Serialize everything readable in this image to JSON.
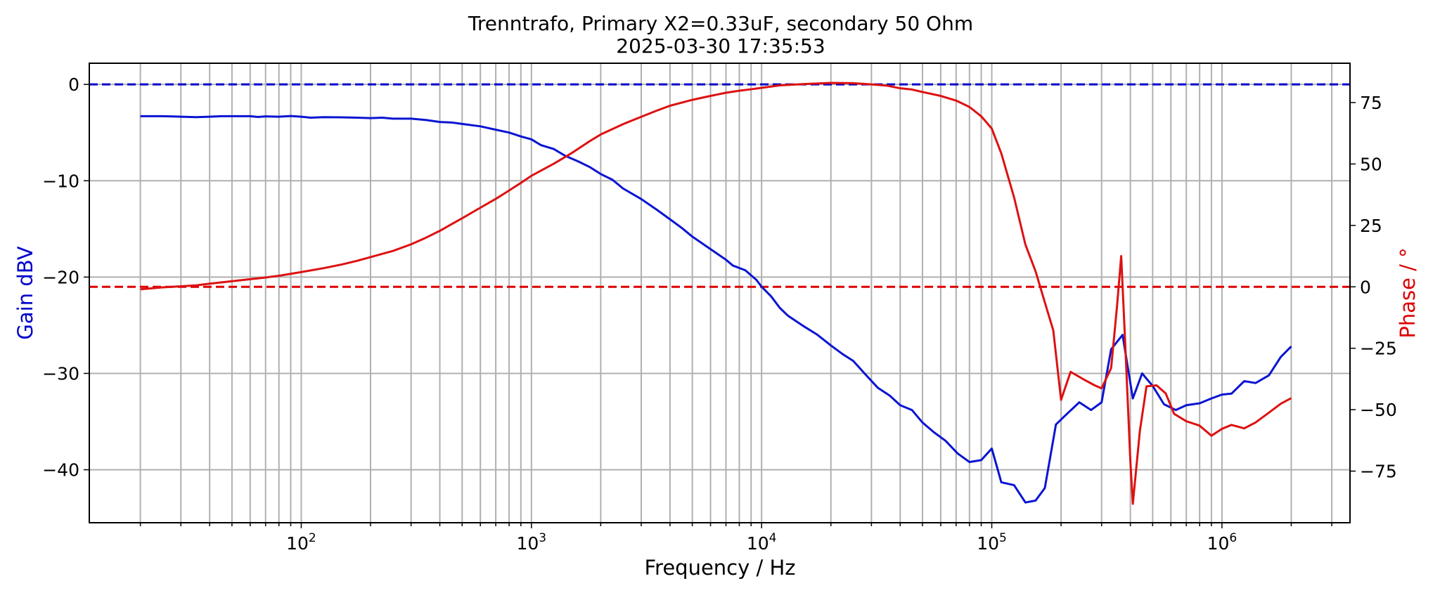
{
  "chart_data": {
    "type": "line",
    "title": "Trenntrafo, Primary X2=0.33uF, secondary 50 Ohm",
    "subtitle": "2025-03-30 17:35:53",
    "xlabel": "Frequency / Hz",
    "ylabel_left": "Gain dBV",
    "ylabel_right": "Phase / °",
    "xscale": "log",
    "xlim": [
      12,
      3600000
    ],
    "ylim_left": [
      -45.5,
      2.2
    ],
    "ylim_right": [
      -96,
      91
    ],
    "grid": true,
    "x_ticks": [
      {
        "value": 100,
        "base": "10",
        "exp": "2"
      },
      {
        "value": 1000,
        "base": "10",
        "exp": "3"
      },
      {
        "value": 10000,
        "base": "10",
        "exp": "4"
      },
      {
        "value": 100000,
        "base": "10",
        "exp": "5"
      },
      {
        "value": 1000000,
        "base": "10",
        "exp": "6"
      }
    ],
    "y_left_ticks": [
      {
        "value": 0,
        "label": "0"
      },
      {
        "value": -10,
        "label": "−10"
      },
      {
        "value": -20,
        "label": "−20"
      },
      {
        "value": -30,
        "label": "−30"
      },
      {
        "value": -40,
        "label": "−40"
      }
    ],
    "y_right_ticks": [
      {
        "value": 75,
        "label": "75"
      },
      {
        "value": 50,
        "label": "50"
      },
      {
        "value": 25,
        "label": "25"
      },
      {
        "value": 0,
        "label": "0"
      },
      {
        "value": -25,
        "label": "−25"
      },
      {
        "value": -50,
        "label": "−50"
      },
      {
        "value": -75,
        "label": "−75"
      }
    ],
    "reference_lines": [
      {
        "axis": "left",
        "value": 0,
        "color": "#0000cc",
        "style": "dashed"
      },
      {
        "axis": "right",
        "value": 0,
        "color": "#dd0000",
        "style": "dashed"
      }
    ],
    "series": [
      {
        "axis": "left",
        "color": "#0a14d2",
        "points": [
          [
            20,
            -3.3
          ],
          [
            25,
            -3.3
          ],
          [
            30,
            -3.35
          ],
          [
            35,
            -3.4
          ],
          [
            40,
            -3.35
          ],
          [
            45,
            -3.3
          ],
          [
            50,
            -3.3
          ],
          [
            60,
            -3.3
          ],
          [
            65,
            -3.38
          ],
          [
            70,
            -3.32
          ],
          [
            80,
            -3.35
          ],
          [
            90,
            -3.28
          ],
          [
            100,
            -3.35
          ],
          [
            110,
            -3.45
          ],
          [
            125,
            -3.4
          ],
          [
            150,
            -3.42
          ],
          [
            175,
            -3.45
          ],
          [
            200,
            -3.5
          ],
          [
            225,
            -3.45
          ],
          [
            250,
            -3.55
          ],
          [
            300,
            -3.55
          ],
          [
            350,
            -3.7
          ],
          [
            400,
            -3.9
          ],
          [
            450,
            -3.95
          ],
          [
            500,
            -4.1
          ],
          [
            600,
            -4.35
          ],
          [
            700,
            -4.7
          ],
          [
            800,
            -5.0
          ],
          [
            900,
            -5.4
          ],
          [
            1000,
            -5.7
          ],
          [
            1100,
            -6.3
          ],
          [
            1250,
            -6.7
          ],
          [
            1400,
            -7.4
          ],
          [
            1600,
            -8.0
          ],
          [
            1800,
            -8.6
          ],
          [
            2000,
            -9.3
          ],
          [
            2250,
            -9.9
          ],
          [
            2500,
            -10.8
          ],
          [
            3000,
            -11.9
          ],
          [
            3500,
            -13.0
          ],
          [
            4000,
            -14.0
          ],
          [
            4500,
            -14.9
          ],
          [
            5000,
            -15.8
          ],
          [
            6000,
            -17.1
          ],
          [
            7000,
            -18.2
          ],
          [
            7500,
            -18.8
          ],
          [
            8500,
            -19.3
          ],
          [
            9500,
            -20.3
          ],
          [
            10000,
            -21.0
          ],
          [
            11000,
            -22.0
          ],
          [
            12000,
            -23.2
          ],
          [
            13000,
            -24.0
          ],
          [
            15000,
            -25.0
          ],
          [
            17500,
            -26.0
          ],
          [
            20000,
            -27.1
          ],
          [
            22500,
            -28.0
          ],
          [
            25000,
            -28.7
          ],
          [
            28000,
            -30.0
          ],
          [
            32000,
            -31.5
          ],
          [
            36000,
            -32.3
          ],
          [
            40000,
            -33.3
          ],
          [
            45000,
            -33.8
          ],
          [
            50000,
            -35.1
          ],
          [
            56000,
            -36.1
          ],
          [
            63000,
            -37.0
          ],
          [
            71000,
            -38.3
          ],
          [
            80000,
            -39.2
          ],
          [
            90000,
            -39.0
          ],
          [
            100000,
            -37.8
          ],
          [
            110000,
            -41.3
          ],
          [
            125000,
            -41.6
          ],
          [
            140000,
            -43.4
          ],
          [
            155000,
            -43.2
          ],
          [
            170000,
            -41.9
          ],
          [
            190000,
            -35.3
          ],
          [
            210000,
            -34.3
          ],
          [
            240000,
            -33.0
          ],
          [
            270000,
            -33.8
          ],
          [
            300000,
            -33.0
          ],
          [
            330000,
            -27.5
          ],
          [
            370000,
            -26.0
          ],
          [
            410000,
            -32.6
          ],
          [
            450000,
            -30.0
          ],
          [
            500000,
            -31.3
          ],
          [
            560000,
            -33.2
          ],
          [
            630000,
            -33.8
          ],
          [
            700000,
            -33.3
          ],
          [
            800000,
            -33.1
          ],
          [
            900000,
            -32.6
          ],
          [
            1000000,
            -32.2
          ],
          [
            1100000,
            -32.1
          ],
          [
            1250000,
            -30.8
          ],
          [
            1400000,
            -31.0
          ],
          [
            1600000,
            -30.2
          ],
          [
            1800000,
            -28.3
          ],
          [
            2000000,
            -27.2
          ]
        ]
      },
      {
        "axis": "right",
        "color": "#dd1111",
        "points": [
          [
            20,
            -1
          ],
          [
            25,
            -0.2
          ],
          [
            30,
            0.2
          ],
          [
            35,
            0.6
          ],
          [
            40,
            1.3
          ],
          [
            50,
            2.3
          ],
          [
            60,
            3.1
          ],
          [
            70,
            3.8
          ],
          [
            80,
            4.5
          ],
          [
            90,
            5.3
          ],
          [
            100,
            6.0
          ],
          [
            125,
            7.6
          ],
          [
            150,
            9.1
          ],
          [
            175,
            10.6
          ],
          [
            200,
            12.1
          ],
          [
            250,
            14.6
          ],
          [
            300,
            17.3
          ],
          [
            350,
            20.1
          ],
          [
            400,
            22.8
          ],
          [
            450,
            25.5
          ],
          [
            500,
            27.9
          ],
          [
            600,
            32.2
          ],
          [
            700,
            35.8
          ],
          [
            800,
            39.2
          ],
          [
            900,
            42.3
          ],
          [
            1000,
            45.2
          ],
          [
            1250,
            50.1
          ],
          [
            1500,
            54.5
          ],
          [
            1800,
            59.4
          ],
          [
            2000,
            62.0
          ],
          [
            2500,
            66.2
          ],
          [
            3000,
            69.2
          ],
          [
            3500,
            71.7
          ],
          [
            4000,
            73.7
          ],
          [
            5000,
            76.1
          ],
          [
            6000,
            77.7
          ],
          [
            7000,
            79.0
          ],
          [
            8000,
            79.8
          ],
          [
            9000,
            80.4
          ],
          [
            10000,
            81.0
          ],
          [
            12000,
            82.0
          ],
          [
            15000,
            82.5
          ],
          [
            20000,
            83.0
          ],
          [
            25000,
            82.9
          ],
          [
            30000,
            82.4
          ],
          [
            35000,
            81.9
          ],
          [
            40000,
            80.8
          ],
          [
            45000,
            80.3
          ],
          [
            50000,
            79.3
          ],
          [
            60000,
            77.7
          ],
          [
            70000,
            75.8
          ],
          [
            80000,
            73.2
          ],
          [
            90000,
            69.4
          ],
          [
            100000,
            64.4
          ],
          [
            110000,
            54.3
          ],
          [
            125000,
            36.4
          ],
          [
            140000,
            17.2
          ],
          [
            155000,
            6.3
          ],
          [
            170000,
            -6.3
          ],
          [
            185000,
            -17.7
          ],
          [
            200000,
            -46.0
          ],
          [
            220000,
            -34.6
          ],
          [
            250000,
            -37.6
          ],
          [
            280000,
            -40.1
          ],
          [
            300000,
            -41.3
          ],
          [
            330000,
            -33.1
          ],
          [
            350000,
            -8.0
          ],
          [
            365000,
            12.5
          ],
          [
            380000,
            -23.2
          ],
          [
            400000,
            -71.0
          ],
          [
            410000,
            -88.3
          ],
          [
            440000,
            -58.6
          ],
          [
            470000,
            -40.5
          ],
          [
            520000,
            -40.1
          ],
          [
            570000,
            -43.4
          ],
          [
            620000,
            -51.7
          ],
          [
            700000,
            -54.7
          ],
          [
            800000,
            -56.5
          ],
          [
            900000,
            -60.6
          ],
          [
            1000000,
            -57.8
          ],
          [
            1100000,
            -56.2
          ],
          [
            1250000,
            -57.6
          ],
          [
            1400000,
            -55.2
          ],
          [
            1600000,
            -51.2
          ],
          [
            1800000,
            -47.6
          ],
          [
            2000000,
            -45.3
          ]
        ]
      }
    ]
  }
}
